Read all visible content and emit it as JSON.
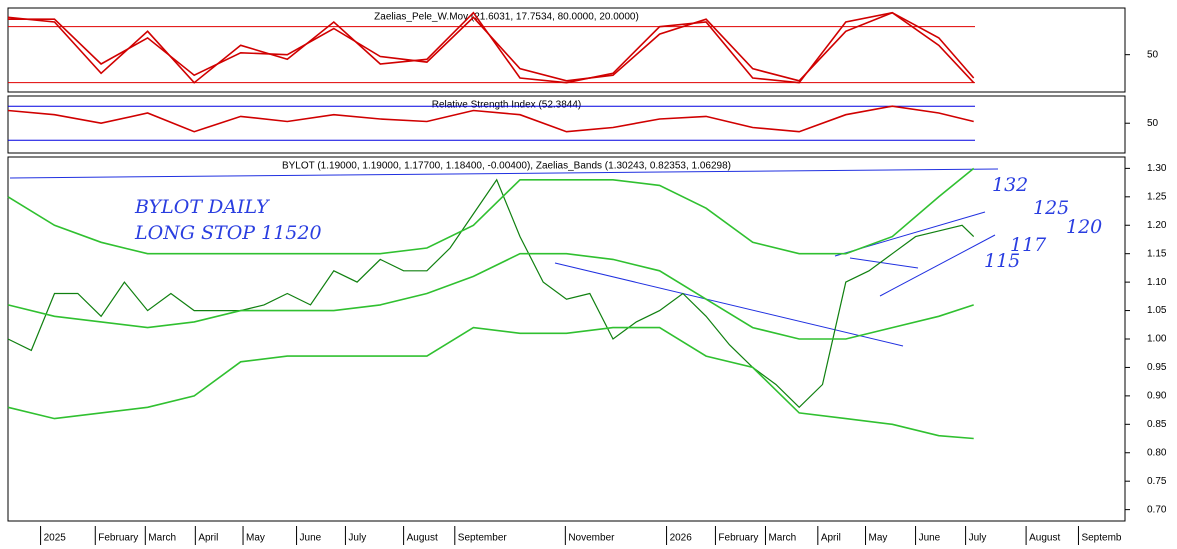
{
  "chart_data": [
    {
      "type": "line",
      "title": "Zaelias_Pele_W.Mov (21.6031, 17.7534, 80.0000, 20.0000)",
      "ylim": [
        10,
        100
      ],
      "yticks": [
        50
      ],
      "levels": [
        80,
        20
      ],
      "level_color": "#e00000",
      "series": [
        {
          "color": "#d00000",
          "x": [
            0,
            4,
            8,
            12,
            16,
            20,
            24,
            28,
            32,
            36,
            40,
            44,
            48,
            52,
            56,
            60,
            64,
            68,
            72,
            76,
            80,
            83
          ],
          "values": [
            90,
            85,
            30,
            75,
            20,
            60,
            45,
            85,
            40,
            45,
            95,
            25,
            20,
            30,
            80,
            85,
            25,
            20,
            85,
            95,
            60,
            20
          ]
        },
        {
          "color": "#d00000",
          "x": [
            0,
            4,
            8,
            12,
            16,
            20,
            24,
            28,
            32,
            36,
            40,
            44,
            48,
            52,
            56,
            60,
            64,
            68,
            72,
            76,
            80,
            83
          ],
          "values": [
            88,
            88,
            40,
            68,
            28,
            52,
            50,
            78,
            48,
            42,
            90,
            35,
            22,
            28,
            72,
            88,
            35,
            22,
            75,
            95,
            68,
            25
          ]
        }
      ]
    },
    {
      "type": "line",
      "title": "Relative Strength Index (52.3844)",
      "ylim": [
        15,
        82
      ],
      "yticks": [
        50
      ],
      "levels": [
        70,
        30
      ],
      "level_color": "#0000e0",
      "series": [
        {
          "color": "#d00000",
          "x": [
            0,
            4,
            8,
            12,
            16,
            20,
            24,
            28,
            32,
            36,
            40,
            44,
            48,
            52,
            56,
            60,
            64,
            68,
            72,
            76,
            80,
            83
          ],
          "values": [
            65,
            60,
            50,
            62,
            40,
            58,
            52,
            60,
            55,
            52,
            65,
            60,
            40,
            45,
            55,
            58,
            45,
            40,
            60,
            70,
            62,
            52
          ]
        }
      ]
    },
    {
      "type": "line",
      "title": "BYLOT (1.19000, 1.19000, 1.17700, 1.18400, -0.00400), Zaelias_Bands (1.30243, 0.82353, 1.06298)",
      "annotations": [
        "BYLOT DAILY",
        "LONG STOP 11520",
        "132",
        "125",
        "120",
        "117",
        "115"
      ],
      "xlim": [
        0,
        96
      ],
      "ylim": [
        0.68,
        1.32
      ],
      "yticks": [
        {
          "value": 1.3,
          "label": "1.30"
        },
        {
          "value": 1.25,
          "label": "1.25"
        },
        {
          "value": 1.2,
          "label": "1.20"
        },
        {
          "value": 1.15,
          "label": "1.15"
        },
        {
          "value": 1.1,
          "label": "1.10"
        },
        {
          "value": 1.05,
          "label": "1.05"
        },
        {
          "value": 1.0,
          "label": "1.00"
        },
        {
          "value": 0.95,
          "label": "0.95"
        },
        {
          "value": 0.9,
          "label": "0.90"
        },
        {
          "value": 0.85,
          "label": "0.85"
        },
        {
          "value": 0.8,
          "label": "0.80"
        },
        {
          "value": 0.75,
          "label": "0.75"
        },
        {
          "value": 0.7,
          "label": "0.70"
        }
      ],
      "xticks": [
        {
          "value": 2.8,
          "label": "2025"
        },
        {
          "value": 7.5,
          "label": "February"
        },
        {
          "value": 11.8,
          "label": "March"
        },
        {
          "value": 16.1,
          "label": "April"
        },
        {
          "value": 20.2,
          "label": "May"
        },
        {
          "value": 24.8,
          "label": "June"
        },
        {
          "value": 29,
          "label": "July"
        },
        {
          "value": 34,
          "label": "August"
        },
        {
          "value": 38.4,
          "label": "September"
        },
        {
          "value": 47.9,
          "label": "November"
        },
        {
          "value": 56.6,
          "label": "2026"
        },
        {
          "value": 60.8,
          "label": "February"
        },
        {
          "value": 65.1,
          "label": "March"
        },
        {
          "value": 69.6,
          "label": "April"
        },
        {
          "value": 73.7,
          "label": "May"
        },
        {
          "value": 78,
          "label": "June"
        },
        {
          "value": 82.3,
          "label": "July"
        },
        {
          "value": 87.5,
          "label": "August"
        },
        {
          "value": 92,
          "label": "Septemb"
        }
      ],
      "series": [
        {
          "color": "#108010",
          "x": [
            0,
            2,
            4,
            6,
            8,
            10,
            12,
            14,
            16,
            18,
            20,
            22,
            24,
            26,
            28,
            30,
            32,
            34,
            36,
            38,
            40,
            42,
            44,
            46,
            48,
            50,
            52,
            54,
            56,
            58,
            60,
            62,
            64,
            66,
            68,
            70,
            72,
            74,
            76,
            78,
            80,
            82,
            83
          ],
          "values": [
            1.0,
            0.98,
            1.08,
            1.08,
            1.04,
            1.1,
            1.05,
            1.08,
            1.05,
            1.05,
            1.05,
            1.06,
            1.08,
            1.06,
            1.12,
            1.1,
            1.14,
            1.12,
            1.12,
            1.16,
            1.22,
            1.28,
            1.18,
            1.1,
            1.07,
            1.08,
            1.0,
            1.03,
            1.05,
            1.08,
            1.04,
            0.99,
            0.95,
            0.92,
            0.88,
            0.92,
            1.1,
            1.12,
            1.15,
            1.18,
            1.19,
            1.2,
            1.18
          ]
        },
        {
          "color": "#30c030",
          "x": [
            0,
            4,
            8,
            12,
            16,
            20,
            24,
            28,
            32,
            36,
            40,
            44,
            48,
            52,
            56,
            60,
            64,
            68,
            72,
            76,
            80,
            83
          ],
          "values": [
            1.25,
            1.2,
            1.17,
            1.15,
            1.15,
            1.15,
            1.15,
            1.15,
            1.15,
            1.16,
            1.2,
            1.28,
            1.28,
            1.28,
            1.27,
            1.23,
            1.17,
            1.15,
            1.15,
            1.18,
            1.25,
            1.3
          ]
        },
        {
          "color": "#30c030",
          "x": [
            0,
            4,
            8,
            12,
            16,
            20,
            24,
            28,
            32,
            36,
            40,
            44,
            48,
            52,
            56,
            60,
            64,
            68,
            72,
            76,
            80,
            83
          ],
          "values": [
            1.06,
            1.04,
            1.03,
            1.02,
            1.03,
            1.05,
            1.05,
            1.05,
            1.06,
            1.08,
            1.11,
            1.15,
            1.15,
            1.14,
            1.12,
            1.07,
            1.02,
            1.0,
            1.0,
            1.02,
            1.04,
            1.06
          ]
        },
        {
          "color": "#30c030",
          "x": [
            0,
            4,
            8,
            12,
            16,
            20,
            24,
            28,
            32,
            36,
            40,
            44,
            48,
            52,
            56,
            60,
            64,
            68,
            72,
            76,
            80,
            83
          ],
          "values": [
            0.88,
            0.86,
            0.87,
            0.88,
            0.9,
            0.96,
            0.97,
            0.97,
            0.97,
            0.97,
            1.02,
            1.01,
            1.01,
            1.02,
            1.02,
            0.97,
            0.95,
            0.87,
            0.86,
            0.85,
            0.83,
            0.825
          ]
        }
      ]
    }
  ]
}
